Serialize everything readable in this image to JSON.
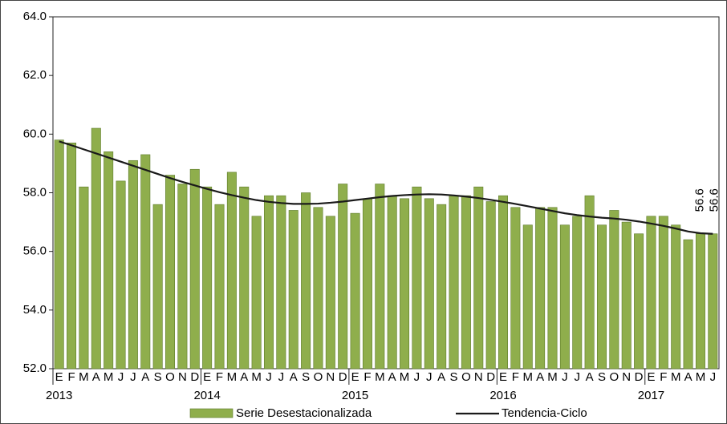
{
  "chart_data": {
    "type": "bar_line",
    "categories": [
      "E",
      "F",
      "M",
      "A",
      "M",
      "J",
      "J",
      "A",
      "S",
      "O",
      "N",
      "D",
      "E",
      "F",
      "M",
      "A",
      "M",
      "J",
      "J",
      "A",
      "S",
      "O",
      "N",
      "D",
      "E",
      "F",
      "M",
      "A",
      "M",
      "J",
      "J",
      "A",
      "S",
      "O",
      "N",
      "D",
      "E",
      "F",
      "M",
      "A",
      "M",
      "J",
      "J",
      "A",
      "S",
      "O",
      "N",
      "D",
      "E",
      "F",
      "M",
      "A",
      "M",
      "J"
    ],
    "years": [
      "2013",
      "2014",
      "2015",
      "2016",
      "2017"
    ],
    "series": [
      {
        "name": "Serie Desestacionalizada",
        "kind": "bar",
        "color": "#8fae4c",
        "values": [
          59.8,
          59.7,
          58.2,
          60.2,
          59.4,
          58.4,
          59.1,
          59.3,
          57.6,
          58.6,
          58.3,
          58.8,
          58.2,
          57.6,
          58.7,
          58.2,
          57.2,
          57.9,
          57.9,
          57.4,
          58.0,
          57.5,
          57.2,
          58.3,
          57.3,
          57.8,
          58.3,
          57.9,
          57.8,
          58.2,
          57.8,
          57.6,
          57.9,
          57.9,
          58.2,
          57.7,
          57.9,
          57.5,
          56.9,
          57.5,
          57.5,
          56.9,
          57.2,
          57.9,
          56.9,
          57.4,
          57.0,
          56.6,
          57.2,
          57.2,
          56.9,
          56.4,
          56.6,
          56.6
        ]
      },
      {
        "name": "Tendencia-Ciclo",
        "kind": "line",
        "color": "#1a1a1a",
        "values": [
          59.75,
          59.62,
          59.48,
          59.34,
          59.2,
          59.06,
          58.92,
          58.78,
          58.64,
          58.5,
          58.37,
          58.25,
          58.13,
          58.02,
          57.92,
          57.83,
          57.75,
          57.69,
          57.65,
          57.62,
          57.62,
          57.63,
          57.66,
          57.7,
          57.75,
          57.8,
          57.85,
          57.89,
          57.92,
          57.94,
          57.95,
          57.94,
          57.91,
          57.87,
          57.82,
          57.76,
          57.69,
          57.62,
          57.54,
          57.46,
          57.38,
          57.3,
          57.24,
          57.19,
          57.15,
          57.12,
          57.08,
          57.02,
          56.95,
          56.87,
          56.78,
          56.68,
          56.62,
          56.6
        ]
      }
    ],
    "ylim": [
      52,
      64
    ],
    "yticks": [
      {
        "value": 52,
        "label": "52.0"
      },
      {
        "value": 54,
        "label": "54.0"
      },
      {
        "value": 56,
        "label": "56.0"
      },
      {
        "value": 58,
        "label": "58.0"
      },
      {
        "value": 60,
        "label": "60.0"
      },
      {
        "value": 62,
        "label": "62.0"
      },
      {
        "value": 64,
        "label": "64.0"
      }
    ],
    "grid": false,
    "legend": "bottom"
  }
}
